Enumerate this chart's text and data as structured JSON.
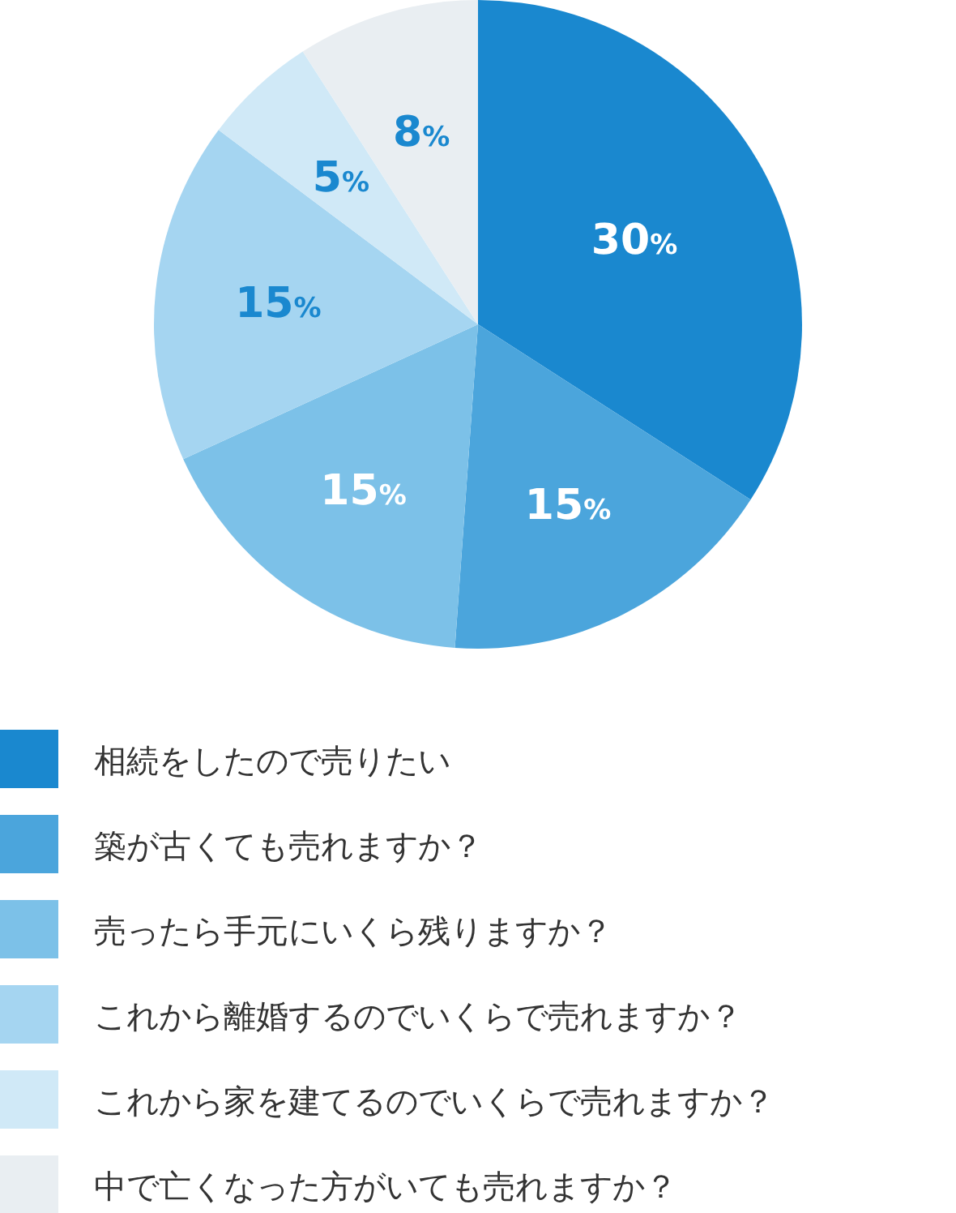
{
  "chart_data": {
    "type": "pie",
    "categories": [
      "相続をしたので売りたい",
      "築が古くても売れますか？",
      "売ったら手元にいくら残りますか？",
      "これから離婚するのでいくらで売れますか？",
      "これから家を建てるのでいくらで売れますか？",
      "中で亡くなった方がいても売れますか？"
    ],
    "values": [
      30,
      15,
      15,
      15,
      5,
      8
    ],
    "value_labels": [
      "30%",
      "15%",
      "15%",
      "15%",
      "5%",
      "8%"
    ],
    "colors": [
      "#1a88cf",
      "#4ba5dc",
      "#7cc1e8",
      "#a5d5f1",
      "#d0e9f7",
      "#e9eef2"
    ],
    "legend": "bottom"
  }
}
